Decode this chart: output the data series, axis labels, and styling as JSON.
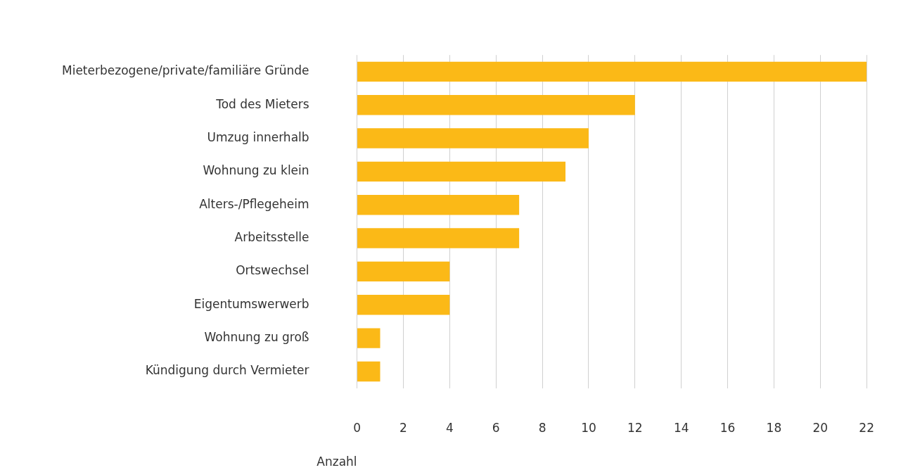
{
  "chart_data": {
    "type": "bar",
    "orientation": "horizontal",
    "xlabel": "Anzahl",
    "categories": [
      "Mieterbezogene/private/familiäre Gründe",
      "Tod des Mieters",
      "Umzug innerhalb",
      "Wohnung zu klein",
      "Alters-/Pflegeheim",
      "Arbeitsstelle",
      "Ortswechsel",
      "Eigentumswerwerb",
      "Wohnung zu groß",
      "Kündigung durch Vermieter"
    ],
    "values": [
      22,
      12,
      10,
      9,
      7,
      7,
      4,
      4,
      1,
      1
    ],
    "color": "#fbb917",
    "xlim": [
      0,
      22
    ],
    "xticks": [
      0,
      2,
      4,
      6,
      8,
      10,
      12,
      14,
      16,
      18,
      20,
      22
    ],
    "grid": "x",
    "legend": false
  }
}
